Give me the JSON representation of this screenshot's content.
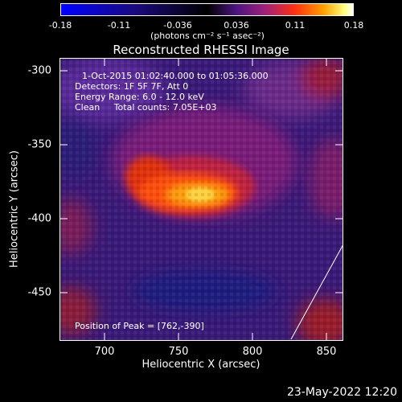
{
  "colorbar": {
    "ticks": [
      "-0.18",
      "-0.11",
      "-0.036",
      "0.036",
      "0.11",
      "0.18"
    ],
    "units": "(photons cm⁻² s⁻¹ asec⁻²)"
  },
  "chart_data": {
    "type": "heatmap",
    "title": "Reconstructed RHESSI Image",
    "xlabel": "Heliocentric X (arcsec)",
    "ylabel": "Heliocentric Y (arcsec)",
    "xlim": [
      670,
      862
    ],
    "ylim": [
      -485,
      -292
    ],
    "xticks": [
      "700",
      "750",
      "800",
      "850"
    ],
    "yticks": [
      "-300",
      "-350",
      "-400",
      "-450"
    ],
    "zlim": [
      -0.18,
      0.18
    ],
    "peak": [
      762,
      -390
    ],
    "annotations": {
      "time": "1-Oct-2015 01:02:40.000 to 01:05:36.000",
      "detectors": "Detectors: 1F 5F 7F, Att 0",
      "energy": "Energy Range: 6.0 - 12.0 keV",
      "algorithm": "Clean     Total counts: 7.05E+03",
      "peak_label": "Position of Peak = [762,-390]"
    }
  },
  "footer": {
    "date": "23-May-2022 12:20"
  }
}
